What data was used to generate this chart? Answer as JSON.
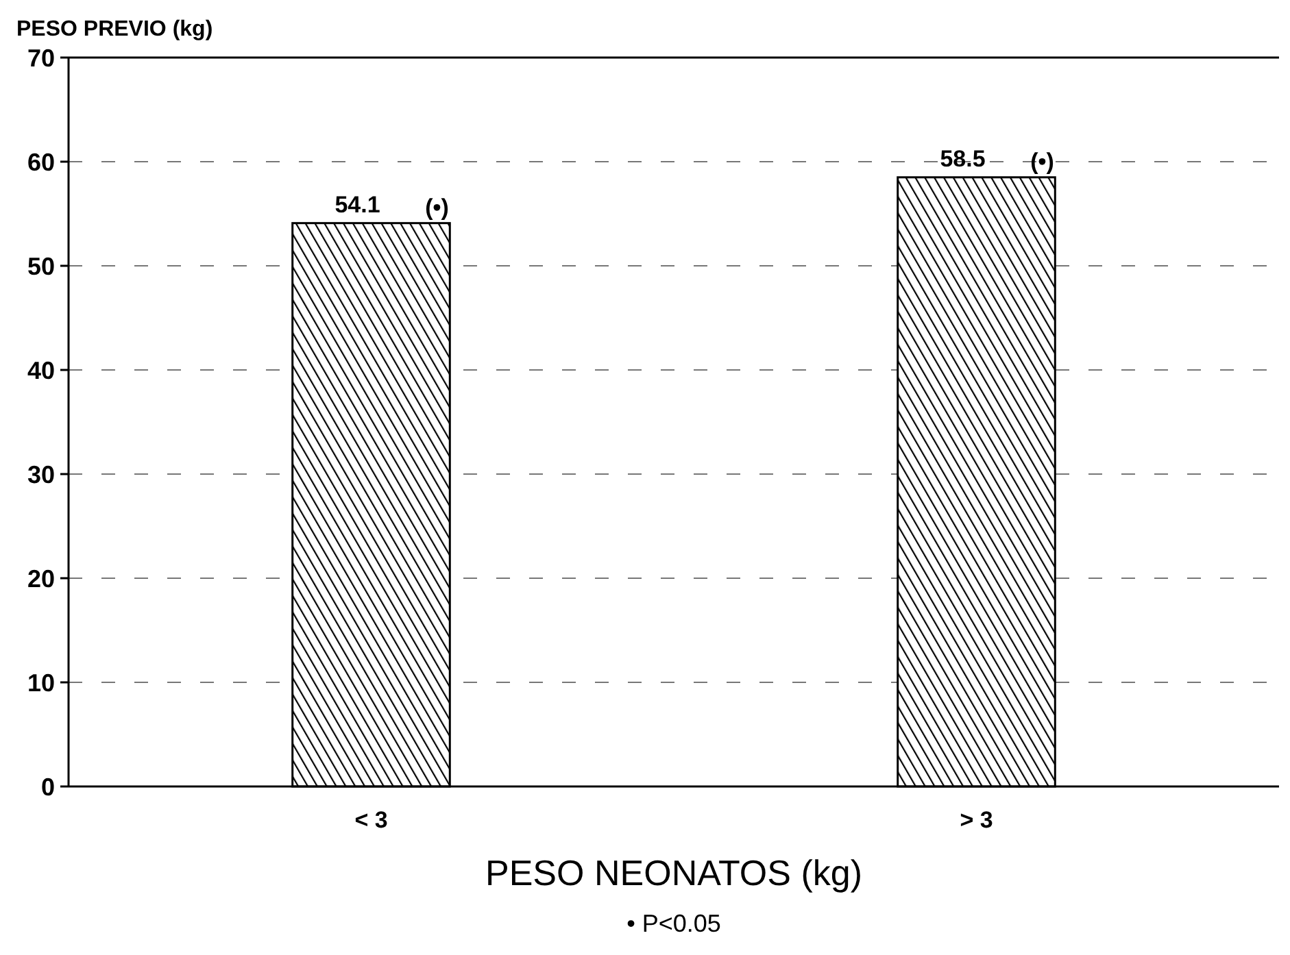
{
  "chart_data": {
    "type": "bar",
    "ylabel": "PESO PREVIO (kg)",
    "xlabel": "PESO NEONATOS (kg)",
    "categories": [
      "< 3",
      "> 3"
    ],
    "values": [
      54.1,
      58.5
    ],
    "value_labels": [
      "54.1",
      "58.5"
    ],
    "color": "#000000",
    "ylim": [
      0,
      70
    ],
    "yticks": [
      0,
      10,
      20,
      30,
      40,
      50,
      60,
      70
    ],
    "grid": "y",
    "annotations": [
      {
        "text": "(•)",
        "x": "< 3",
        "y": 54.1
      },
      {
        "text": "(•)",
        "x": "> 3",
        "y": 58.5
      },
      "• P<0.05"
    ]
  }
}
